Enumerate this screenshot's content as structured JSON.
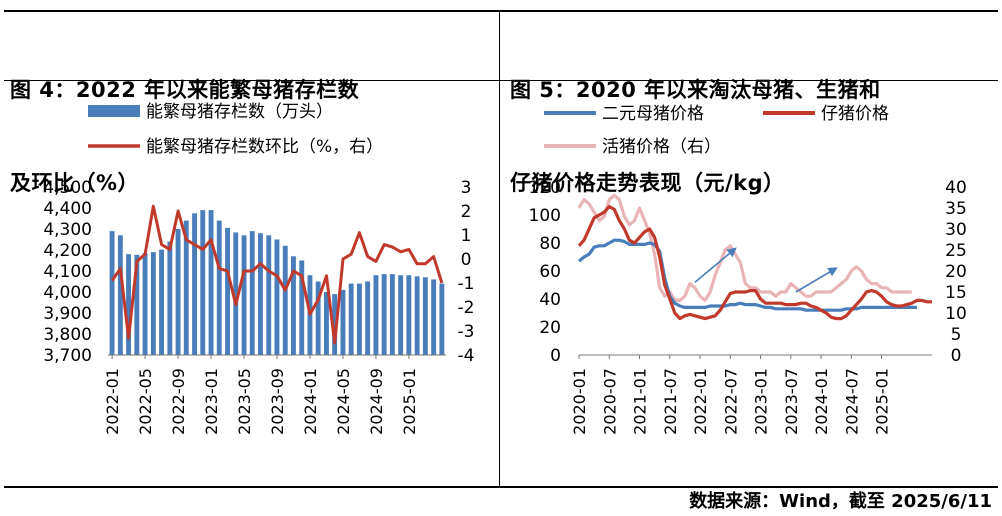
{
  "panels": [
    {
      "title_line1": "图 4：2022 年以来能繁母猪存栏数",
      "title_line2": "及环比（%）"
    },
    {
      "title_line1": "图 5：2020 年以来淘汰母猪、生猪和",
      "title_line2": "仔猪价格走势表现（元/kg）"
    }
  ],
  "source": "数据来源：Wind，截至 2025/6/11",
  "colors": {
    "bar": "#4a7ebb",
    "red_line": "#c0392b",
    "blue_line": "#4a7ebb",
    "pink_line": "#e8b4b6",
    "arrow": "#4a7ebb"
  },
  "chart_data": [
    {
      "type": "bar",
      "legend": [
        "能繁母猪存栏数（万头）",
        "能繁母猪存栏数环比（%，右）"
      ],
      "x_tick_labels": [
        "2022-01",
        "2022-05",
        "2022-09",
        "2023-01",
        "2023-05",
        "2023-09",
        "2024-01",
        "2024-05",
        "2024-09",
        "2025-01"
      ],
      "y_left_ticks": [
        "4,500",
        "4,400",
        "4,300",
        "4,200",
        "4,100",
        "4,000",
        "3,900",
        "3,800",
        "3,700"
      ],
      "y_right_ticks": [
        "3",
        "2",
        "1",
        "0",
        "-1",
        "-2",
        "-3",
        "-4"
      ],
      "ylim_left": [
        3700,
        4500
      ],
      "ylim_right": [
        -4,
        3
      ],
      "months_start": "2022-01",
      "series": [
        {
          "name": "能繁母猪存栏数（万头）",
          "kind": "bar",
          "axis": "left",
          "values": [
            4290,
            4270,
            4180,
            4177,
            4185,
            4190,
            4202,
            4240,
            4300,
            4340,
            4375,
            4390,
            4390,
            4340,
            4305,
            4284,
            4270,
            4290,
            4280,
            4270,
            4250,
            4220,
            4170,
            4150,
            4080,
            4050,
            4000,
            3990,
            4010,
            4040,
            4040,
            4050,
            4080,
            4085,
            4085,
            4080,
            4080,
            4075,
            4070,
            4060,
            4040
          ]
        },
        {
          "name": "能繁母猪存栏数环比（%，右）",
          "kind": "line",
          "axis": "right",
          "values": [
            -0.9,
            -0.4,
            -3.3,
            -0.1,
            0.2,
            2.2,
            0.6,
            0.4,
            2.0,
            0.8,
            0.6,
            0.4,
            0.8,
            -0.4,
            -0.5,
            -1.9,
            -0.5,
            -0.5,
            -0.2,
            -0.5,
            -0.7,
            -1.3,
            -0.5,
            -0.7,
            -2.3,
            -1.7,
            -0.7,
            -3.5,
            0,
            0.2,
            1.1,
            0.1,
            -0.1,
            0.6,
            0.5,
            0.3,
            0.4,
            -0.2,
            -0.2,
            0.1,
            -1.0
          ]
        }
      ]
    },
    {
      "type": "line",
      "legend": [
        "二元母猪价格",
        "仔猪价格",
        "活猪价格（右）"
      ],
      "x_tick_labels": [
        "2020-01",
        "2020-07",
        "2021-01",
        "2021-07",
        "2022-01",
        "2022-07",
        "2023-01",
        "2023-07",
        "2024-01",
        "2024-07",
        "2025-01"
      ],
      "y_left_ticks": [
        "120",
        "100",
        "80",
        "60",
        "40",
        "20",
        "0"
      ],
      "y_right_ticks": [
        "40",
        "35",
        "30",
        "25",
        "20",
        "15",
        "10",
        "5",
        "0"
      ],
      "ylim_left": [
        0,
        120
      ],
      "ylim_right": [
        0,
        40
      ],
      "months_start": "2020-01",
      "series": [
        {
          "name": "二元母猪价格",
          "axis": "left",
          "values": [
            67,
            70,
            72,
            77,
            78,
            78,
            80,
            82,
            82,
            81,
            79,
            79,
            79,
            79,
            80,
            79,
            74,
            55,
            42,
            37,
            35,
            34,
            34,
            34,
            34,
            34,
            35,
            35,
            35,
            35,
            36,
            36,
            37,
            36,
            36,
            36,
            35,
            34,
            34,
            33,
            33,
            33,
            33,
            33,
            33,
            32,
            32,
            32,
            32,
            32,
            32,
            32,
            32,
            33,
            33,
            33,
            34,
            34,
            34,
            34,
            34,
            34,
            34,
            34,
            34,
            34,
            34,
            34
          ]
        },
        {
          "name": "仔猪价格",
          "axis": "left",
          "values": [
            78,
            82,
            90,
            98,
            100,
            102,
            106,
            104,
            96,
            90,
            82,
            80,
            84,
            88,
            90,
            84,
            70,
            50,
            40,
            30,
            26,
            28,
            29,
            28,
            27,
            26,
            27,
            28,
            32,
            38,
            44,
            45,
            45,
            45,
            46,
            46,
            40,
            37,
            37,
            37,
            37,
            36,
            36,
            36,
            37,
            37,
            35,
            34,
            32,
            30,
            27,
            26,
            26,
            28,
            32,
            36,
            40,
            45,
            46,
            45,
            42,
            38,
            36,
            35,
            35,
            36,
            37,
            39,
            39,
            38,
            38
          ]
        },
        {
          "name": "活猪价格（右）",
          "axis": "right",
          "values": [
            35,
            37,
            36,
            34,
            32,
            33,
            37,
            38,
            37,
            33,
            31,
            32,
            35,
            32,
            29,
            24,
            16,
            14,
            15,
            13,
            13,
            14,
            17,
            16,
            14,
            13,
            15,
            19,
            22,
            25,
            26,
            24,
            22,
            17,
            16,
            16,
            15,
            15,
            15,
            14,
            15,
            15,
            17,
            16,
            15,
            14,
            14,
            15,
            15,
            15,
            15,
            16,
            17,
            18,
            20,
            21,
            20,
            18,
            17,
            17,
            16,
            16,
            15,
            15,
            15,
            15,
            15
          ]
        }
      ]
    }
  ]
}
